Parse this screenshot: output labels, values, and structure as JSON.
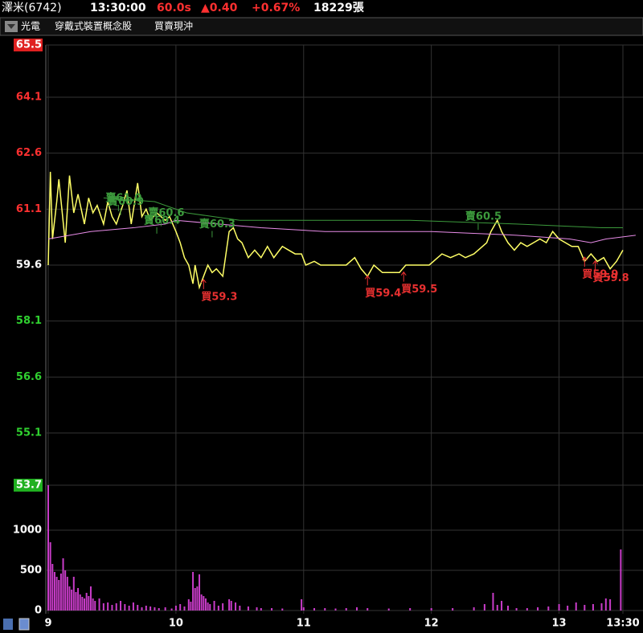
{
  "header": {
    "name": "澤米(6742)",
    "time": "13:30:00",
    "interval": "60.0s",
    "change": "▲0.40",
    "change_pct": "+0.67%",
    "volume": "18229張"
  },
  "tabs": [
    "光電",
    "穿戴式裝置概念股",
    "買賣現沖"
  ],
  "chart_data": [
    {
      "type": "line",
      "xlim": [
        0,
        270
      ],
      "ylim": [
        53.7,
        65.5
      ],
      "yticks": [
        65.5,
        64.1,
        62.6,
        61.1,
        59.6,
        58.1,
        56.6,
        55.1,
        53.7
      ],
      "ytick_styles": [
        "box-red",
        "red",
        "red",
        "red",
        "white",
        "green",
        "green",
        "green",
        "box-green"
      ],
      "series": [
        {
          "color": "#ffff66",
          "x": [
            0,
            1,
            2,
            4,
            5,
            8,
            10,
            12,
            14,
            17,
            19,
            21,
            23,
            26,
            28,
            30,
            32,
            35,
            37,
            39,
            42,
            44,
            46,
            48,
            51,
            53,
            55,
            57,
            60,
            62,
            64,
            66,
            68,
            69,
            71,
            73,
            75,
            77,
            79,
            82,
            83,
            85,
            87,
            89,
            91,
            94,
            97,
            100,
            103,
            106,
            110,
            113,
            116,
            119,
            121,
            125,
            128,
            132,
            136,
            140,
            144,
            147,
            150,
            153,
            157,
            161,
            165,
            168,
            171,
            175,
            179,
            183,
            185,
            189,
            193,
            196,
            200,
            204,
            206,
            208,
            211,
            213,
            216,
            219,
            222,
            225,
            228,
            231,
            234,
            237,
            240,
            243,
            246,
            249,
            252,
            255,
            258,
            261,
            264,
            267,
            270
          ],
          "values": [
            59.6,
            62.1,
            60.3,
            61.3,
            61.9,
            60.2,
            62.0,
            61.0,
            61.5,
            60.7,
            61.4,
            61.0,
            61.2,
            60.7,
            61.3,
            60.9,
            60.7,
            61.2,
            61.6,
            60.7,
            61.8,
            60.9,
            61.1,
            60.8,
            61.0,
            60.9,
            60.8,
            60.9,
            60.5,
            60.2,
            59.8,
            59.6,
            59.1,
            59.6,
            59.0,
            59.3,
            59.6,
            59.4,
            59.5,
            59.3,
            59.7,
            60.5,
            60.6,
            60.3,
            60.2,
            59.8,
            60.0,
            59.8,
            60.1,
            59.8,
            60.1,
            60.0,
            59.9,
            59.9,
            59.6,
            59.7,
            59.6,
            59.6,
            59.6,
            59.6,
            59.8,
            59.5,
            59.3,
            59.6,
            59.4,
            59.4,
            59.4,
            59.6,
            59.6,
            59.6,
            59.6,
            59.8,
            59.9,
            59.8,
            59.9,
            59.8,
            59.9,
            60.1,
            60.2,
            60.5,
            60.8,
            60.5,
            60.2,
            60.0,
            60.2,
            60.1,
            60.2,
            60.3,
            60.2,
            60.5,
            60.3,
            60.2,
            60.1,
            60.1,
            59.7,
            59.9,
            59.7,
            59.8,
            59.5,
            59.7,
            60.0
          ]
        },
        {
          "color": "#e88ce8",
          "x": [
            0,
            20,
            40,
            55,
            60,
            80,
            100,
            130,
            180,
            220,
            245,
            255,
            262,
            276
          ],
          "values": [
            60.3,
            60.5,
            60.6,
            60.7,
            60.8,
            60.7,
            60.6,
            60.5,
            60.5,
            60.4,
            60.3,
            60.2,
            60.3,
            60.4
          ]
        },
        {
          "color": "#3c9a3c",
          "x": [
            26,
            50,
            65,
            90,
            170,
            220,
            260,
            270
          ],
          "values": [
            61.4,
            61.3,
            61.0,
            60.8,
            60.8,
            60.7,
            60.6,
            60.6
          ]
        }
      ],
      "annotations": [
        {
          "label": "賣61.0",
          "x": 33,
          "value": 61.0,
          "kind": "sell",
          "color": "#3c9a3c"
        },
        {
          "label": "賣60.9",
          "x": 34,
          "value": 60.9,
          "kind": "sell",
          "color": "#3c9a3c"
        },
        {
          "label": "賣60.6",
          "x": 53,
          "value": 60.6,
          "kind": "sell",
          "color": "#3c9a3c"
        },
        {
          "label": "賣60.4",
          "x": 51,
          "value": 60.4,
          "kind": "sell",
          "color": "#3c9a3c"
        },
        {
          "label": "賣60.3",
          "x": 77,
          "value": 60.3,
          "kind": "sell",
          "color": "#3c9a3c"
        },
        {
          "label": "賣60.5",
          "x": 202,
          "value": 60.5,
          "kind": "sell",
          "color": "#3c9a3c"
        },
        {
          "label": "買59.3",
          "x": 73,
          "value": 59.3,
          "kind": "buy",
          "color": "#e83030"
        },
        {
          "label": "買59.4",
          "x": 150,
          "value": 59.4,
          "kind": "buy",
          "color": "#e83030"
        },
        {
          "label": "買59.5",
          "x": 167,
          "value": 59.5,
          "kind": "buy",
          "color": "#e83030"
        },
        {
          "label": "買59.9",
          "x": 252,
          "value": 59.9,
          "kind": "buy",
          "color": "#e83030"
        },
        {
          "label": "買59.8",
          "x": 257,
          "value": 59.8,
          "kind": "buy",
          "color": "#e83030"
        }
      ]
    },
    {
      "type": "bar",
      "color": "#c83cc8",
      "xlim": [
        0,
        270
      ],
      "ylim": [
        0,
        1560
      ],
      "yticks": [
        0,
        500,
        1000
      ],
      "xticks": [
        {
          "value": 0,
          "label": "9"
        },
        {
          "value": 60,
          "label": "10"
        },
        {
          "value": 120,
          "label": "11"
        },
        {
          "value": 180,
          "label": "12"
        },
        {
          "value": 240,
          "label": "13"
        },
        {
          "value": 270,
          "label": "13:30"
        }
      ],
      "x": [
        0,
        1,
        2,
        3,
        4,
        5,
        6,
        7,
        8,
        9,
        10,
        11,
        12,
        13,
        14,
        15,
        16,
        17,
        18,
        19,
        20,
        21,
        22,
        24,
        26,
        28,
        30,
        32,
        34,
        36,
        38,
        40,
        42,
        44,
        46,
        48,
        50,
        52,
        55,
        58,
        60,
        62,
        64,
        66,
        67,
        68,
        69,
        70,
        71,
        72,
        73,
        74,
        75,
        76,
        78,
        80,
        82,
        85,
        86,
        88,
        90,
        94,
        98,
        100,
        105,
        110,
        119,
        120,
        125,
        130,
        135,
        140,
        145,
        150,
        160,
        170,
        180,
        190,
        200,
        205,
        209,
        211,
        213,
        216,
        220,
        225,
        230,
        235,
        240,
        244,
        248,
        252,
        256,
        260,
        262,
        264,
        269
      ],
      "values": [
        1560,
        850,
        580,
        480,
        420,
        380,
        460,
        650,
        500,
        420,
        300,
        260,
        420,
        230,
        280,
        200,
        170,
        150,
        220,
        180,
        300,
        150,
        120,
        150,
        90,
        100,
        70,
        90,
        120,
        80,
        60,
        100,
        70,
        40,
        60,
        50,
        40,
        30,
        40,
        25,
        60,
        80,
        50,
        140,
        110,
        480,
        280,
        300,
        450,
        200,
        180,
        150,
        100,
        80,
        120,
        60,
        90,
        140,
        120,
        100,
        60,
        50,
        40,
        30,
        30,
        25,
        140,
        40,
        30,
        30,
        25,
        30,
        40,
        30,
        25,
        30,
        30,
        30,
        40,
        80,
        220,
        70,
        120,
        60,
        30,
        30,
        40,
        50,
        80,
        60,
        100,
        70,
        80,
        90,
        150,
        140,
        760
      ]
    }
  ]
}
